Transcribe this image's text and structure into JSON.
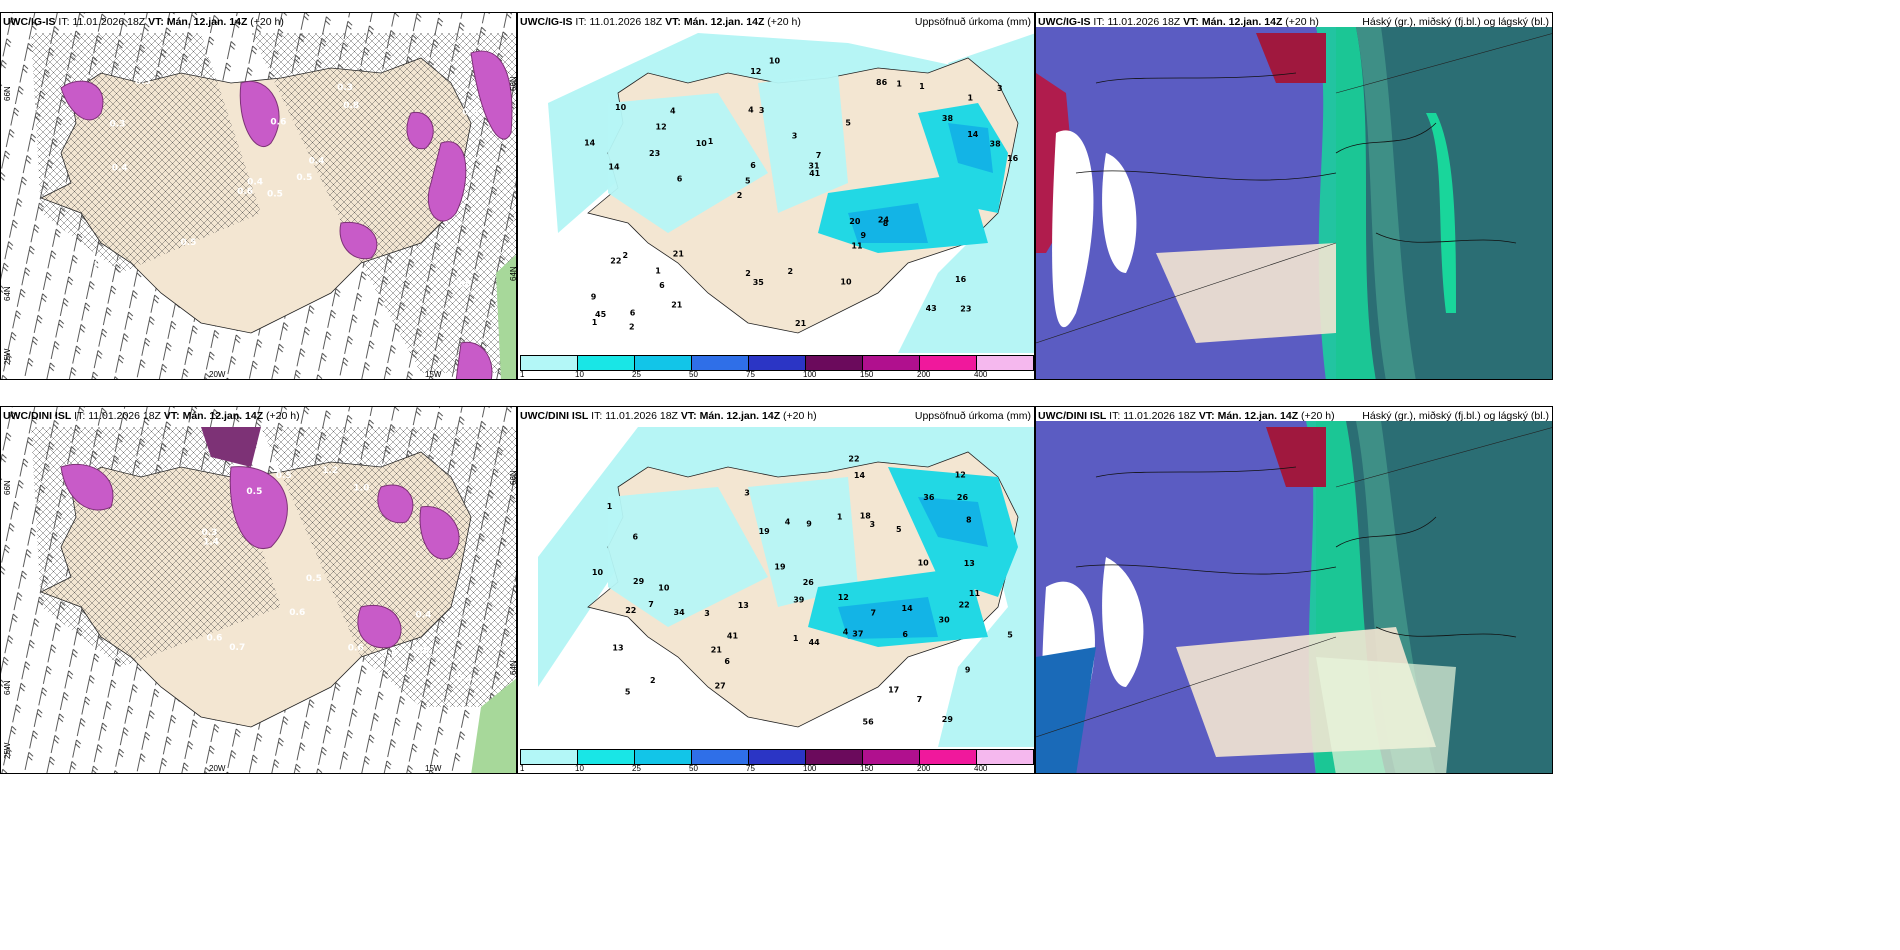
{
  "rows": [
    {
      "model": "UWC/IG-IS",
      "it_label": "IT:",
      "it_value": "11.01.2026 18Z",
      "vt_label": "VT:",
      "vt_value": "Mán. 12.jan. 14Z",
      "lead": "(+20 h)",
      "precip_numbers": [
        "23",
        "14",
        "1",
        "2",
        "5",
        "6",
        "4",
        "3",
        "2",
        "1",
        "9",
        "6",
        "3",
        "7",
        "8",
        "10",
        "12",
        "16",
        "20",
        "14",
        "5",
        "2",
        "6",
        "4",
        "86",
        "21",
        "43",
        "16",
        "24",
        "21",
        "10",
        "23",
        "11",
        "21",
        "38",
        "31",
        "45",
        "35",
        "41",
        "22",
        "38",
        "3",
        "9",
        "10",
        "1",
        "2",
        "1",
        "2",
        "1",
        "10",
        "6",
        "14",
        "12",
        "1"
      ],
      "wind_labels": [
        "0.5",
        "0.3",
        "0.4",
        "0.5",
        "0.4",
        "0.5",
        "0.3",
        "0.6",
        "0.8",
        "0.5",
        "0.3",
        "0.6",
        "0.4",
        "0.5",
        "0.6"
      ]
    },
    {
      "model": "UWC/DINI ISL",
      "it_label": "IT:",
      "it_value": "11.01.2026 18Z",
      "vt_label": "VT:",
      "vt_value": "Mán. 12.jan. 14Z",
      "lead": "(+20 h)",
      "precip_numbers": [
        "29",
        "7",
        "4",
        "1",
        "9",
        "6",
        "2",
        "3",
        "5",
        "4",
        "3",
        "7",
        "6",
        "3",
        "12",
        "13",
        "14",
        "26",
        "10",
        "5",
        "12",
        "9",
        "10",
        "5",
        "11",
        "29",
        "34",
        "39",
        "19",
        "26",
        "37",
        "22",
        "21",
        "18",
        "19",
        "30",
        "22",
        "17",
        "36",
        "56",
        "41",
        "44",
        "27",
        "22",
        "13",
        "10",
        "8",
        "14",
        "1",
        "1",
        "7",
        "13",
        "6"
      ],
      "wind_labels": [
        "0.3",
        "0.4",
        "0.5",
        "0.6",
        "0.5",
        "1.2",
        "0.8",
        "1.0",
        "0.5",
        "0.6",
        "0.4",
        "1.4",
        "0.7",
        "0.5",
        "0.6",
        "0.3"
      ]
    }
  ],
  "precip_title": "Uppsöfnuð úrkoma (mm)",
  "cloud_title": "Háský (gr.), miðský (fj.bl.) og lágský (bl.)",
  "axis_labels": {
    "lat_66": "66N",
    "lat_64": "64N",
    "lat_25": "25W",
    "lon_20": "20W",
    "lon_15": "15W",
    "right_66": "66N",
    "right_64": "64N"
  },
  "colorbar": {
    "ticks": [
      "1",
      "10",
      "25",
      "50",
      "75",
      "100",
      "150",
      "200",
      "400"
    ],
    "colors": [
      "#b3f7f7",
      "#19e6e6",
      "#12c5e8",
      "#2f6fe8",
      "#2b35c5",
      "#6b0a5c",
      "#b0108e",
      "#f0189c",
      "#f5b8ee"
    ]
  },
  "colors": {
    "land": "#f3e6d2",
    "precip_light": "#b6f5f5",
    "precip_mid": "#22d8e4",
    "precip_heavy": "#13b4e6",
    "snow_magenta": "#c85bc8",
    "snow_dark": "#7d3276",
    "cloud_blue": "#5b5cc2",
    "cloud_teal": "#2b6e74",
    "cloud_green": "#19d69b",
    "cloud_red": "#b01c4d"
  }
}
